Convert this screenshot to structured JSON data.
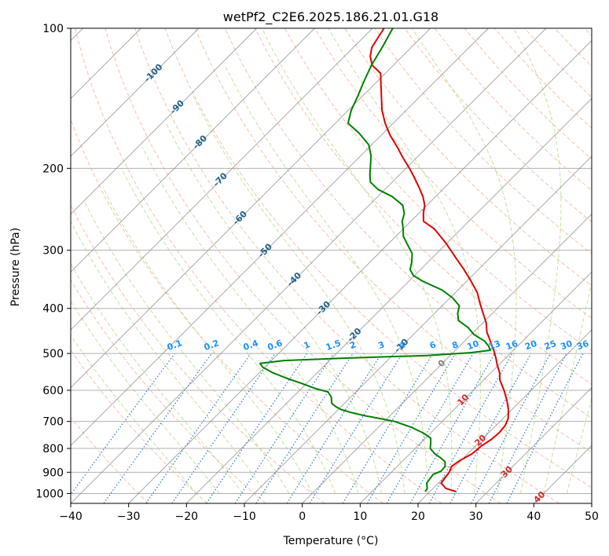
{
  "chart_data": {
    "type": "line",
    "chart_kind": "skew-T log-P diagram",
    "title": "wetPf2_C2E6.2025.186.21.01.G18",
    "xlabel": "Temperature (°C)",
    "ylabel": "Pressure (hPa)",
    "xlim": [
      -40,
      50
    ],
    "ylim": [
      1050,
      100
    ],
    "y_scale": "log",
    "x_ticks": [
      -40,
      -30,
      -20,
      -10,
      0,
      10,
      20,
      30,
      40,
      50
    ],
    "x_tick_labels": [
      "−40",
      "−30",
      "−20",
      "−10",
      "0",
      "10",
      "20",
      "30",
      "40",
      "50"
    ],
    "y_ticks": [
      1000,
      900,
      800,
      700,
      600,
      500,
      400,
      300,
      200,
      100
    ],
    "y_tick_labels": [
      "1000",
      "900",
      "800",
      "700",
      "600",
      "500",
      "400",
      "300",
      "200",
      "100"
    ],
    "grid": true,
    "colors": {
      "temperature": "#e00000",
      "dewpoint": "#008000",
      "dry_adiabat": "#f4a582",
      "moist_adiabat": "#a6d96a",
      "mixing_ratio": "#1f78d4",
      "isotherm": "#888888",
      "isotherm_label": "#1f5f8b",
      "mixing_label": "#1e90ff",
      "warm_label": "#d62728"
    },
    "series": [
      {
        "key": "temperature",
        "points": [
          [
            990,
            24.5
          ],
          [
            975,
            22.2
          ],
          [
            950,
            20.5
          ],
          [
            920,
            20.2
          ],
          [
            900,
            20.0
          ],
          [
            875,
            19.4
          ],
          [
            850,
            19.8
          ],
          [
            820,
            20.8
          ],
          [
            790,
            21.0
          ],
          [
            765,
            21.6
          ],
          [
            740,
            21.8
          ],
          [
            715,
            21.6
          ],
          [
            690,
            20.9
          ],
          [
            660,
            19.4
          ],
          [
            630,
            17.5
          ],
          [
            600,
            15.3
          ],
          [
            570,
            12.8
          ],
          [
            550,
            11.5
          ],
          [
            530,
            9.8
          ],
          [
            510,
            8.2
          ],
          [
            490,
            6.4
          ],
          [
            470,
            4.4
          ],
          [
            450,
            2.3
          ],
          [
            430,
            0.6
          ],
          [
            410,
            -1.6
          ],
          [
            390,
            -3.9
          ],
          [
            370,
            -6.2
          ],
          [
            350,
            -9.2
          ],
          [
            330,
            -12.5
          ],
          [
            310,
            -16.2
          ],
          [
            290,
            -20.1
          ],
          [
            270,
            -24.6
          ],
          [
            260,
            -27.8
          ],
          [
            250,
            -29.2
          ],
          [
            240,
            -30.4
          ],
          [
            230,
            -32.2
          ],
          [
            220,
            -34.4
          ],
          [
            210,
            -36.8
          ],
          [
            200,
            -39.4
          ],
          [
            190,
            -42.3
          ],
          [
            180,
            -45.2
          ],
          [
            170,
            -48.4
          ],
          [
            160,
            -51.4
          ],
          [
            150,
            -54.2
          ],
          [
            140,
            -56.7
          ],
          [
            130,
            -59.4
          ],
          [
            125,
            -60.8
          ],
          [
            120,
            -63.7
          ],
          [
            115,
            -65.5
          ],
          [
            110,
            -66.8
          ],
          [
            105,
            -67.4
          ],
          [
            100,
            -68.0
          ]
        ]
      },
      {
        "key": "dewpoint",
        "points": [
          [
            990,
            19.2
          ],
          [
            975,
            19.0
          ],
          [
            950,
            18.0
          ],
          [
            930,
            17.8
          ],
          [
            910,
            17.6
          ],
          [
            895,
            18.4
          ],
          [
            875,
            18.3
          ],
          [
            855,
            17.5
          ],
          [
            840,
            16.2
          ],
          [
            820,
            14.2
          ],
          [
            800,
            12.6
          ],
          [
            780,
            11.8
          ],
          [
            760,
            10.9
          ],
          [
            740,
            8.6
          ],
          [
            720,
            5.6
          ],
          [
            700,
            1.8
          ],
          [
            690,
            -1.2
          ],
          [
            680,
            -4.5
          ],
          [
            670,
            -7.2
          ],
          [
            660,
            -9.5
          ],
          [
            650,
            -11.0
          ],
          [
            640,
            -12.2
          ],
          [
            620,
            -13.4
          ],
          [
            605,
            -14.8
          ],
          [
            595,
            -17.5
          ],
          [
            580,
            -20.8
          ],
          [
            565,
            -24.4
          ],
          [
            550,
            -27.7
          ],
          [
            535,
            -30.4
          ],
          [
            525,
            -31.5
          ],
          [
            518,
            -28.0
          ],
          [
            512,
            -18.5
          ],
          [
            505,
            -4.0
          ],
          [
            498,
            3.0
          ],
          [
            492,
            6.0
          ],
          [
            482,
            5.0
          ],
          [
            470,
            3.4
          ],
          [
            455,
            0.4
          ],
          [
            440,
            -1.7
          ],
          [
            425,
            -4.6
          ],
          [
            410,
            -6.0
          ],
          [
            395,
            -7.0
          ],
          [
            380,
            -9.5
          ],
          [
            365,
            -12.8
          ],
          [
            350,
            -17.5
          ],
          [
            340,
            -20.2
          ],
          [
            330,
            -21.8
          ],
          [
            318,
            -22.8
          ],
          [
            305,
            -24.2
          ],
          [
            292,
            -26.5
          ],
          [
            280,
            -28.7
          ],
          [
            270,
            -30.0
          ],
          [
            260,
            -31.5
          ],
          [
            250,
            -32.5
          ],
          [
            240,
            -34.2
          ],
          [
            230,
            -37.5
          ],
          [
            222,
            -41.2
          ],
          [
            214,
            -43.8
          ],
          [
            206,
            -45.2
          ],
          [
            198,
            -46.5
          ],
          [
            188,
            -48.2
          ],
          [
            178,
            -50.5
          ],
          [
            168,
            -54.2
          ],
          [
            160,
            -57.8
          ],
          [
            150,
            -59.5
          ],
          [
            140,
            -60.8
          ],
          [
            130,
            -62.3
          ],
          [
            120,
            -63.8
          ],
          [
            110,
            -65.0
          ],
          [
            100,
            -66.5
          ]
        ]
      }
    ],
    "isotherm_labels": [
      "-100",
      "-90",
      "-80",
      "-70",
      "-60",
      "-50",
      "-40",
      "-30",
      "-20",
      "-10",
      "0",
      "10",
      "20",
      "30",
      "40"
    ],
    "mixing_ratio_labels": [
      "0.1",
      "0.2",
      "0.4",
      "0.6",
      "1",
      "1.5",
      "2",
      "3",
      "4",
      "6",
      "8",
      "10",
      "13",
      "16",
      "20",
      "25",
      "30",
      "36"
    ]
  }
}
